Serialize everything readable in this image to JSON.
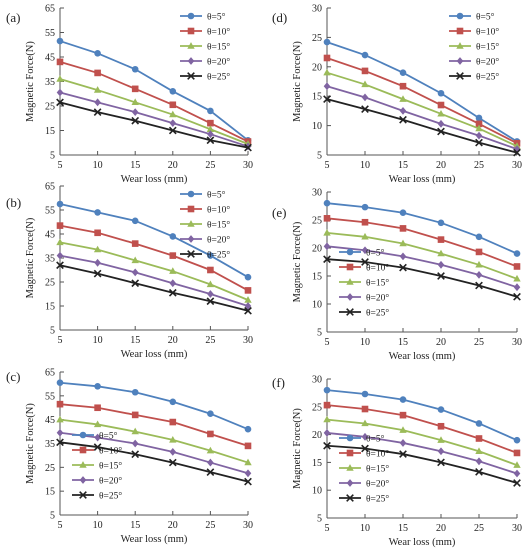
{
  "chart_data": [
    {
      "panel_label": "(a)",
      "type": "line",
      "x": [
        5,
        10,
        15,
        20,
        25,
        30
      ],
      "xlabel": "Wear loss (mm)",
      "ylabel": "Magnetic Force(N)",
      "xlim": [
        5,
        30
      ],
      "ylim": [
        5,
        65
      ],
      "yticks": [
        5,
        15,
        25,
        35,
        45,
        55,
        65
      ],
      "legend_position": "top-right",
      "grid": false,
      "series": [
        {
          "name": "θ=5°",
          "color": "#4f81bd",
          "marker": "circle",
          "values": [
            51.5,
            46.5,
            40,
            31,
            23,
            11
          ]
        },
        {
          "name": "θ=10°",
          "color": "#c0504d",
          "marker": "square",
          "values": [
            43,
            38.5,
            32,
            25.5,
            18,
            10.5
          ]
        },
        {
          "name": "θ=15°",
          "color": "#9bbb59",
          "marker": "triangle",
          "values": [
            36,
            31.5,
            26.5,
            21.5,
            15.5,
            9.5
          ]
        },
        {
          "name": "θ=20°",
          "color": "#8064a2",
          "marker": "diamond",
          "values": [
            30.5,
            26.5,
            22.5,
            18,
            13.5,
            8.5
          ]
        },
        {
          "name": "θ=25°",
          "color": "#222222",
          "marker": "x",
          "values": [
            26.5,
            22.5,
            19,
            15,
            11,
            8
          ]
        }
      ]
    },
    {
      "panel_label": "(b)",
      "type": "line",
      "x": [
        5,
        10,
        15,
        20,
        25,
        30
      ],
      "xlabel": "Wear loss (mm)",
      "ylabel": "Magnetic Force(N)",
      "xlim": [
        5,
        30
      ],
      "ylim": [
        5,
        65
      ],
      "yticks": [
        5,
        15,
        25,
        35,
        45,
        55,
        65
      ],
      "legend_position": "top-right",
      "grid": false,
      "series": [
        {
          "name": "θ=5°",
          "color": "#4f81bd",
          "marker": "circle",
          "values": [
            57.5,
            54,
            50.5,
            44,
            36,
            27
          ]
        },
        {
          "name": "θ=10°",
          "color": "#c0504d",
          "marker": "square",
          "values": [
            48.5,
            45.5,
            41,
            36,
            30,
            21.5
          ]
        },
        {
          "name": "θ=15°",
          "color": "#9bbb59",
          "marker": "triangle",
          "values": [
            41.5,
            38.5,
            34,
            29.5,
            24,
            17.5
          ]
        },
        {
          "name": "θ=20°",
          "color": "#8064a2",
          "marker": "diamond",
          "values": [
            36,
            33,
            29,
            24.5,
            20,
            15
          ]
        },
        {
          "name": "θ=25°",
          "color": "#222222",
          "marker": "x",
          "values": [
            32,
            28.5,
            24.5,
            20.5,
            17,
            13
          ]
        }
      ]
    },
    {
      "panel_label": "(c)",
      "type": "line",
      "x": [
        5,
        10,
        15,
        20,
        25,
        30
      ],
      "xlabel": "Wear loss (mm)",
      "ylabel": "Magnetic Force(N)",
      "xlim": [
        5,
        30
      ],
      "ylim": [
        5,
        65
      ],
      "yticks": [
        5,
        15,
        25,
        35,
        45,
        55,
        65
      ],
      "legend_position": "bottom-left",
      "grid": false,
      "series": [
        {
          "name": "θ=5°",
          "color": "#4f81bd",
          "marker": "circle",
          "values": [
            60.5,
            59,
            56.5,
            52.5,
            47.5,
            41
          ]
        },
        {
          "name": "θ=10°",
          "color": "#c0504d",
          "marker": "square",
          "values": [
            51.5,
            50,
            47,
            44,
            39,
            34
          ]
        },
        {
          "name": "θ=15°",
          "color": "#9bbb59",
          "marker": "triangle",
          "values": [
            45,
            43,
            40,
            36.5,
            32,
            27
          ]
        },
        {
          "name": "θ=20°",
          "color": "#8064a2",
          "marker": "diamond",
          "values": [
            39.5,
            37.5,
            35,
            31.5,
            27,
            22.5
          ]
        },
        {
          "name": "θ=25°",
          "color": "#222222",
          "marker": "x",
          "values": [
            35.5,
            33.5,
            30.5,
            27,
            23,
            19
          ]
        }
      ]
    },
    {
      "panel_label": "(d)",
      "type": "line",
      "x": [
        5,
        10,
        15,
        20,
        25,
        30
      ],
      "xlabel": "Wear loss (mm)",
      "ylabel": "Magnetic Force(N)",
      "xlim": [
        5,
        30
      ],
      "ylim": [
        5,
        30
      ],
      "yticks": [
        5,
        10,
        15,
        20,
        25,
        30
      ],
      "legend_position": "top-right",
      "grid": false,
      "series": [
        {
          "name": "θ=5°",
          "color": "#4f81bd",
          "marker": "circle",
          "values": [
            24.2,
            22,
            19,
            15.5,
            11.3,
            7.3
          ]
        },
        {
          "name": "θ=10°",
          "color": "#c0504d",
          "marker": "square",
          "values": [
            21.5,
            19.3,
            16.7,
            13.5,
            10.3,
            7
          ]
        },
        {
          "name": "θ=15°",
          "color": "#9bbb59",
          "marker": "triangle",
          "values": [
            19,
            17,
            14.5,
            12,
            9.5,
            6.5
          ]
        },
        {
          "name": "θ=20°",
          "color": "#8064a2",
          "marker": "diamond",
          "values": [
            16.7,
            14.8,
            12.5,
            10.3,
            8.3,
            6
          ]
        },
        {
          "name": "θ=25°",
          "color": "#222222",
          "marker": "x",
          "values": [
            14.5,
            12.8,
            11,
            9,
            7.1,
            5.4
          ]
        }
      ]
    },
    {
      "panel_label": "(e)",
      "type": "line",
      "x": [
        5,
        10,
        15,
        20,
        25,
        30
      ],
      "xlabel": "Wear loss (mm)",
      "ylabel": "Magnetic Force(N)",
      "xlim": [
        5,
        30
      ],
      "ylim": [
        5,
        30
      ],
      "yticks": [
        5,
        10,
        15,
        20,
        25,
        30
      ],
      "legend_position": "bottom-left",
      "grid": false,
      "series": [
        {
          "name": "θ=5°",
          "color": "#4f81bd",
          "marker": "circle",
          "values": [
            28,
            27.3,
            26.3,
            24.5,
            22,
            19
          ]
        },
        {
          "name": "θ=10°",
          "color": "#c0504d",
          "marker": "square",
          "values": [
            25.3,
            24.6,
            23.5,
            21.5,
            19.3,
            16.7
          ]
        },
        {
          "name": "θ=15°",
          "color": "#9bbb59",
          "marker": "triangle",
          "values": [
            22.7,
            22,
            20.8,
            19,
            17,
            14.5
          ]
        },
        {
          "name": "θ=20°",
          "color": "#8064a2",
          "marker": "diamond",
          "values": [
            20.3,
            19.6,
            18.5,
            17,
            15.2,
            13
          ]
        },
        {
          "name": "θ=25°",
          "color": "#222222",
          "marker": "x",
          "values": [
            18,
            17.5,
            16.5,
            15,
            13.3,
            11.3
          ]
        }
      ]
    },
    {
      "panel_label": "(f)",
      "type": "line",
      "x": [
        5,
        10,
        15,
        20,
        25,
        30
      ],
      "xlabel": "Wear loss (mm)",
      "ylabel": "Magnetic Force(N)",
      "xlim": [
        5,
        30
      ],
      "ylim": [
        5,
        30
      ],
      "yticks": [
        5,
        10,
        15,
        20,
        25,
        30
      ],
      "legend_position": "bottom-left",
      "grid": false,
      "series": [
        {
          "name": "θ=5°",
          "color": "#4f81bd",
          "marker": "circle",
          "values": [
            28,
            27.3,
            26.3,
            24.5,
            22,
            19
          ]
        },
        {
          "name": "θ=10°",
          "color": "#c0504d",
          "marker": "square",
          "values": [
            25.3,
            24.6,
            23.5,
            21.5,
            19.3,
            16.7
          ]
        },
        {
          "name": "θ=15°",
          "color": "#9bbb59",
          "marker": "triangle",
          "values": [
            22.7,
            22,
            20.8,
            19,
            17,
            14.5
          ]
        },
        {
          "name": "θ=20°",
          "color": "#8064a2",
          "marker": "diamond",
          "values": [
            20.3,
            19.6,
            18.5,
            17,
            15.2,
            13
          ]
        },
        {
          "name": "θ=25°",
          "color": "#222222",
          "marker": "x",
          "values": [
            18,
            17.5,
            16.5,
            15,
            13.3,
            11.3
          ]
        }
      ]
    }
  ]
}
